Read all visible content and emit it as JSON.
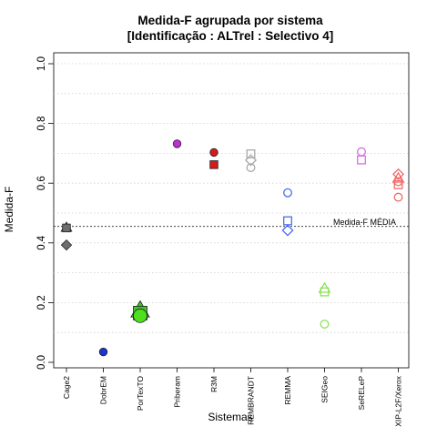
{
  "chart_data": {
    "type": "scatter",
    "title_line1": "Medida-F agrupada por sistema",
    "title_line2": "[Identificação : ALTrel : Selectivo 4]",
    "xlabel": "Sistemas",
    "ylabel": "Medida-F",
    "ylim": [
      0.0,
      1.0
    ],
    "yticks": [
      0.0,
      0.2,
      0.4,
      0.6,
      0.8,
      1.0
    ],
    "ytick_labels": [
      "0.0",
      "0.2",
      "0.4",
      "0.6",
      "0.8",
      "1.0"
    ],
    "grid": "horizontal-dotted",
    "categories": [
      "Cage2",
      "DobrEM",
      "PorTexTO",
      "Priberam",
      "R3M",
      "REMBRANDT",
      "REMMA",
      "SEIGeo",
      "SeRELeP",
      "XIP-L2F/Xerox"
    ],
    "reference_line": {
      "label": "Medida-F MÉDIA",
      "value": 0.455
    },
    "points": [
      {
        "category": "Cage2",
        "value": 0.452,
        "shape": "triangle",
        "color": "#6e6e6e",
        "size": "small"
      },
      {
        "category": "Cage2",
        "value": 0.45,
        "shape": "square",
        "color": "#6e6e6e",
        "size": "small"
      },
      {
        "category": "Cage2",
        "value": 0.393,
        "shape": "diamond",
        "color": "#6e6e6e",
        "size": "small"
      },
      {
        "category": "DobrEM",
        "value": 0.035,
        "shape": "circle",
        "color": "#1a36d1",
        "size": "small"
      },
      {
        "category": "PorTexTO",
        "value": 0.175,
        "shape": "triangle",
        "color": "#3fc42a",
        "size": "large"
      },
      {
        "category": "PorTexTO",
        "value": 0.165,
        "shape": "square",
        "color": "#3fc42a",
        "size": "large"
      },
      {
        "category": "PorTexTO",
        "value": 0.156,
        "shape": "circle",
        "color": "#4de01f",
        "size": "large"
      },
      {
        "category": "Priberam",
        "value": 0.732,
        "shape": "circle",
        "color": "#c02ed6",
        "size": "small"
      },
      {
        "category": "R3M",
        "value": 0.703,
        "shape": "circle",
        "color": "#d11d1d",
        "size": "small"
      },
      {
        "category": "R3M",
        "value": 0.662,
        "shape": "square",
        "color": "#d11d1d",
        "size": "small"
      },
      {
        "category": "REMBRANDT",
        "value": 0.698,
        "shape": "square-open",
        "color": "#a8a8a8",
        "size": "small"
      },
      {
        "category": "REMBRANDT",
        "value": 0.677,
        "shape": "diamond-open",
        "color": "#a8a8a8",
        "size": "small"
      },
      {
        "category": "REMBRANDT",
        "value": 0.652,
        "shape": "circle-open",
        "color": "#a8a8a8",
        "size": "small"
      },
      {
        "category": "REMMA",
        "value": 0.568,
        "shape": "circle-open",
        "color": "#4a6df0",
        "size": "small"
      },
      {
        "category": "REMMA",
        "value": 0.474,
        "shape": "square-open",
        "color": "#4a6df0",
        "size": "small"
      },
      {
        "category": "REMMA",
        "value": 0.442,
        "shape": "diamond-open",
        "color": "#4a6df0",
        "size": "small"
      },
      {
        "category": "SEIGeo",
        "value": 0.248,
        "shape": "triangle-open",
        "color": "#8ee05a",
        "size": "small"
      },
      {
        "category": "SEIGeo",
        "value": 0.236,
        "shape": "square-open",
        "color": "#8ee05a",
        "size": "small"
      },
      {
        "category": "SEIGeo",
        "value": 0.128,
        "shape": "circle-open",
        "color": "#8ee05a",
        "size": "small"
      },
      {
        "category": "SeRELeP",
        "value": 0.705,
        "shape": "circle-open",
        "color": "#d470e0",
        "size": "small"
      },
      {
        "category": "SeRELeP",
        "value": 0.678,
        "shape": "square-open",
        "color": "#d470e0",
        "size": "small"
      },
      {
        "category": "XIP-L2F/Xerox",
        "value": 0.63,
        "shape": "diamond-open",
        "color": "#f06a6a",
        "size": "small"
      },
      {
        "category": "XIP-L2F/Xerox",
        "value": 0.617,
        "shape": "triangle-open",
        "color": "#f06a6a",
        "size": "small"
      },
      {
        "category": "XIP-L2F/Xerox",
        "value": 0.605,
        "shape": "circle-open",
        "color": "#f06a6a",
        "size": "small"
      },
      {
        "category": "XIP-L2F/Xerox",
        "value": 0.595,
        "shape": "square-open",
        "color": "#f06a6a",
        "size": "small"
      },
      {
        "category": "XIP-L2F/Xerox",
        "value": 0.553,
        "shape": "circle-open",
        "color": "#f06a6a",
        "size": "small"
      }
    ]
  }
}
